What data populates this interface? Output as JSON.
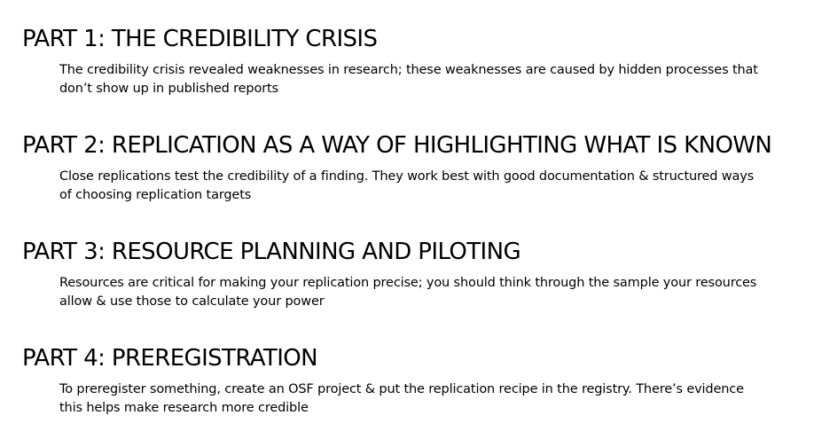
{
  "sections": [
    {
      "heading": "PART 1: THE CREDIBILITY CRISIS",
      "body": "The credibility crisis revealed weaknesses in research; these weaknesses are caused by hidden processes that don’t show up in published reports"
    },
    {
      "heading": "PART 2: REPLICATION AS A WAY OF HIGHLIGHTING WHAT IS KNOWN",
      "body": "Close replications test the credibility of a finding. They work best with good documentation & structured ways of choosing replication targets"
    },
    {
      "heading": "PART 3: RESOURCE PLANNING AND PILOTING",
      "body": "Resources are critical for making your replication precise; you should think through the sample your resources allow & use those to calculate your power"
    },
    {
      "heading": "PART 4: PREREGISTRATION",
      "body": "To preregister something, create an OSF project & put the replication recipe in the registry. There’s evidence this helps make research more credible"
    }
  ]
}
